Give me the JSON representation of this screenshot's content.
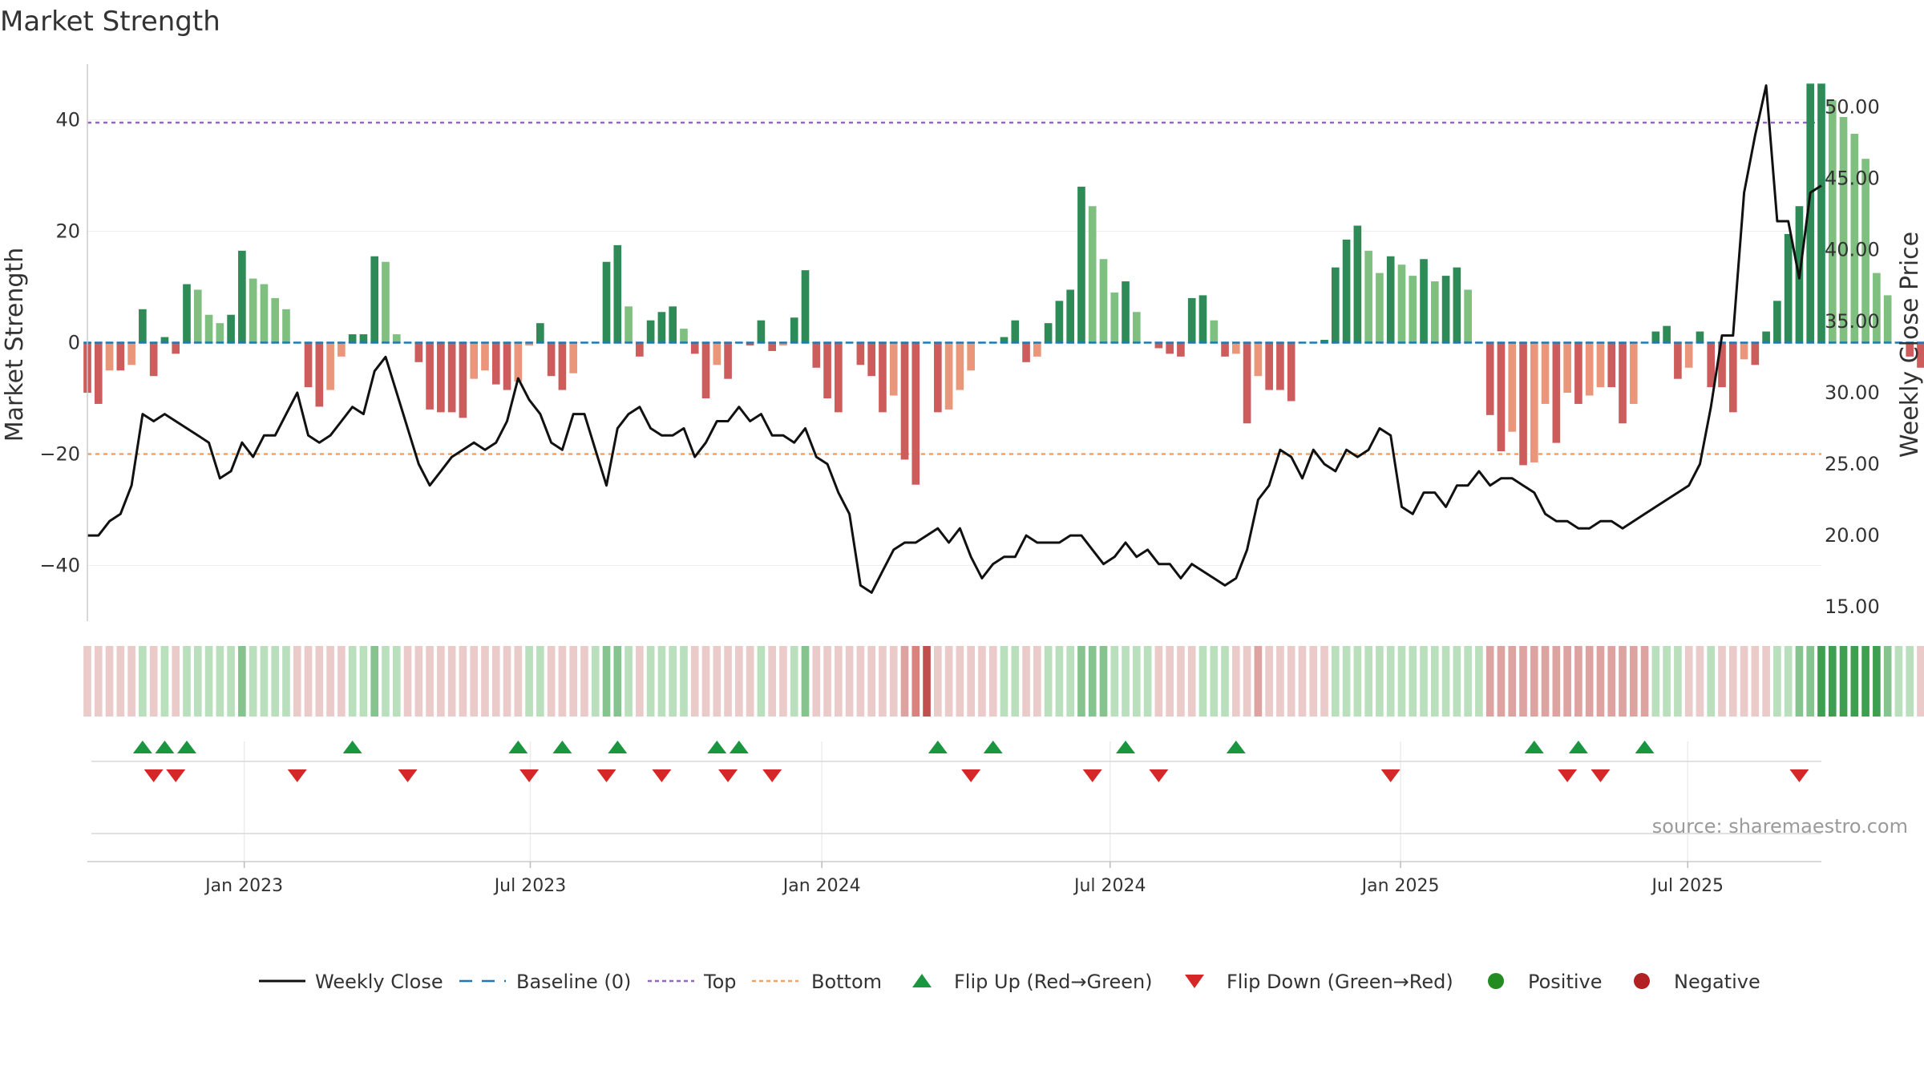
{
  "chart_data": {
    "type": "bar",
    "title": "Market Strength",
    "ylabel_left": "Market Strength",
    "ylabel_right": "Weekly Close Price",
    "source": "source: sharemaestro.com",
    "left_ylim": [
      -50,
      50
    ],
    "right_ylim": [
      14,
      53
    ],
    "left_ticks": [
      {
        "v": 40,
        "label": "40"
      },
      {
        "v": 20,
        "label": "20"
      },
      {
        "v": 0,
        "label": "0"
      },
      {
        "v": -20,
        "label": "−20"
      },
      {
        "v": -40,
        "label": "−40"
      }
    ],
    "right_ticks": [
      {
        "v": 50,
        "label": "50.00"
      },
      {
        "v": 45,
        "label": "45.00"
      },
      {
        "v": 40,
        "label": "40.00"
      },
      {
        "v": 35,
        "label": "35.00"
      },
      {
        "v": 30,
        "label": "30.00"
      },
      {
        "v": 25,
        "label": "25.00"
      },
      {
        "v": 20,
        "label": "20.00"
      },
      {
        "v": 15,
        "label": "15.00"
      }
    ],
    "top_line": 39.5,
    "bottom_line": -20,
    "baseline": 0,
    "x_start_week": 0,
    "x_end_week": 157,
    "date_ticks": [
      {
        "label": "Jan 2023",
        "week": 14.2
      },
      {
        "label": "Jul 2023",
        "week": 40.1
      },
      {
        "label": "Jan 2024",
        "week": 66.5
      },
      {
        "label": "Jul 2024",
        "week": 92.6
      },
      {
        "label": "Jan 2025",
        "week": 118.9
      },
      {
        "label": "Jul 2025",
        "week": 144.9
      }
    ],
    "strength": [
      -9,
      -11,
      -5,
      -5,
      -4,
      6,
      -6,
      1,
      -2,
      10.5,
      9.5,
      5,
      3.5,
      5,
      16.5,
      11.5,
      10.5,
      8,
      6,
      0,
      -8,
      -11.5,
      -8.5,
      -2.5,
      1.5,
      1.5,
      15.5,
      14.5,
      1.5,
      0,
      -3.5,
      -12,
      -12.5,
      -12.5,
      -13.5,
      -6.5,
      -5,
      -7.5,
      -8.5,
      -7,
      -0.5,
      3.5,
      -6,
      -8.5,
      -5.5,
      0,
      0,
      14.5,
      17.5,
      6.5,
      -2.5,
      4,
      5.5,
      6.5,
      2.5,
      -2,
      -10,
      -4,
      -6.5,
      0,
      -0.5,
      4,
      -1.5,
      -0.5,
      4.5,
      13,
      -4.5,
      -10,
      -12.5,
      0,
      -4,
      -6,
      -12.5,
      -9.5,
      -21,
      -25.5,
      0,
      -12.5,
      -12,
      -8.5,
      -5,
      0,
      0,
      1,
      4,
      -3.5,
      -2.5,
      3.5,
      7.5,
      9.5,
      28,
      24.5,
      15,
      9,
      11,
      5.5,
      0,
      -1,
      -2,
      -2.5,
      8,
      8.5,
      4,
      -2.5,
      -2,
      -14.5,
      -6,
      -8.5,
      -8.5,
      -10.5,
      0,
      0,
      0.5,
      13.5,
      18.5,
      21,
      16.5,
      12.5,
      15.5,
      14,
      12,
      15,
      11,
      12,
      13.5,
      9.5,
      0,
      -13,
      -19.5,
      -16,
      -22,
      -21.5,
      -11,
      -18,
      -9,
      -11,
      -9.5,
      -8,
      -8,
      -14.5,
      -11,
      0,
      2,
      3,
      -6.5,
      -4.5,
      2,
      -8,
      -8,
      -12.5,
      -3,
      -4,
      2,
      7.5,
      19.5,
      24.5,
      46.5,
      46.5,
      43.5,
      40.5,
      37.5,
      33,
      12.5,
      8.5,
      0,
      -2.5,
      -4.5
    ],
    "close": [
      20.0,
      20.0,
      21.0,
      21.5,
      23.5,
      28.5,
      28.0,
      28.5,
      28.0,
      27.5,
      27.0,
      26.5,
      24.0,
      24.5,
      26.5,
      25.5,
      27.0,
      27.0,
      28.5,
      30.0,
      27.0,
      26.5,
      27.0,
      28.0,
      29.0,
      28.5,
      31.5,
      32.5,
      30.0,
      27.5,
      25.0,
      23.5,
      24.5,
      25.5,
      26.0,
      26.5,
      26.0,
      26.5,
      28.0,
      31.0,
      29.5,
      28.5,
      26.5,
      26.0,
      28.5,
      28.5,
      26.0,
      23.5,
      27.5,
      28.5,
      29.0,
      27.5,
      27.0,
      27.0,
      27.5,
      25.5,
      26.5,
      28.0,
      28.0,
      29.0,
      28.0,
      28.5,
      27.0,
      27.0,
      26.5,
      27.5,
      25.5,
      25.0,
      23.0,
      21.5,
      16.5,
      16.0,
      17.5,
      19.0,
      19.5,
      19.5,
      20.0,
      20.5,
      19.5,
      20.5,
      18.5,
      17.0,
      18.0,
      18.5,
      18.5,
      20.0,
      19.5,
      19.5,
      19.5,
      20.0,
      20.0,
      19.0,
      18.0,
      18.5,
      19.5,
      18.5,
      19.0,
      18.0,
      18.0,
      17.0,
      18.0,
      17.5,
      17.0,
      16.5,
      17.0,
      19.0,
      22.5,
      23.5,
      26.0,
      25.5,
      24.0,
      26.0,
      25.0,
      24.5,
      26.0,
      25.5,
      26.0,
      27.5,
      27.0,
      22.0,
      21.5,
      23.0,
      23.0,
      22.0,
      23.5,
      23.5,
      24.5,
      23.5,
      24.0,
      24.0,
      23.5,
      23.0,
      21.5,
      21.0,
      21.0,
      20.5,
      20.5,
      21.0,
      21.0,
      20.5,
      21.0,
      21.5,
      22.0,
      22.5,
      23.0,
      23.5,
      25.0,
      29.0,
      34.0,
      34.0,
      44.0,
      48.0,
      51.5,
      42.0,
      42.0,
      38.0,
      44.0,
      44.5
    ],
    "status_strip": [
      0,
      0,
      0,
      0,
      0,
      1,
      0,
      1,
      0,
      1,
      1,
      1,
      1,
      1,
      2,
      1,
      1,
      1,
      1,
      0,
      0,
      0,
      0,
      0,
      1,
      1,
      2,
      1,
      1,
      0,
      0,
      0,
      0,
      0,
      0,
      0,
      0,
      0,
      0,
      0,
      1,
      1,
      0,
      0,
      0,
      0,
      1,
      2,
      2,
      1,
      0,
      1,
      1,
      1,
      1,
      0,
      0,
      0,
      0,
      0,
      0,
      1,
      0,
      0,
      1,
      2,
      0,
      0,
      0,
      0,
      0,
      0,
      0,
      0,
      -1,
      -2,
      -3,
      0,
      0,
      0,
      0,
      0,
      0,
      1,
      1,
      0,
      0,
      1,
      1,
      1,
      2,
      2,
      2,
      1,
      1,
      1,
      1,
      0,
      0,
      0,
      0,
      1,
      1,
      1,
      0,
      0,
      -1,
      0,
      0,
      0,
      0,
      0,
      0,
      1,
      1,
      1,
      1,
      1,
      1,
      1,
      1,
      1,
      1,
      1,
      1,
      1,
      1,
      -1,
      -1,
      -1,
      -1,
      -1,
      -1,
      -1,
      -1,
      -1,
      -1,
      -1,
      -1,
      -1,
      -1,
      -1,
      1,
      1,
      1,
      0,
      0,
      1,
      0,
      0,
      0,
      0,
      0,
      1,
      1,
      2,
      2,
      3,
      3,
      3,
      3,
      3,
      3,
      2,
      1,
      1,
      0,
      0
    ],
    "flip_up_weeks": [
      5,
      7,
      9,
      24,
      39,
      43,
      48,
      57,
      59,
      77,
      82,
      94,
      104,
      131,
      135,
      141
    ],
    "flip_down_weeks": [
      6,
      8,
      19,
      29,
      40,
      47,
      52,
      58,
      62,
      80,
      91,
      97,
      118,
      134,
      137,
      155
    ],
    "colors": {
      "strong_green": "#2e8b57",
      "light_green": "#7fbf7f",
      "strong_red": "#cd5c5c",
      "light_red": "#e9967a",
      "close_line": "#111111",
      "baseline": "#1f77b4",
      "top": "#9467bd",
      "bottom": "#f4a261",
      "flip_up": "#1a9641",
      "flip_down": "#d62728",
      "positive": "#228b22",
      "negative": "#b22222",
      "grid": "#e6e6e6",
      "axis": "#cccccc"
    },
    "legend": [
      {
        "label": "Weekly Close",
        "kind": "solid-line"
      },
      {
        "label": "Baseline (0)",
        "kind": "dashed-line"
      },
      {
        "label": "Top",
        "kind": "dotted-purple"
      },
      {
        "label": "Bottom",
        "kind": "dotted-orange"
      },
      {
        "label": "Flip Up (Red→Green)",
        "kind": "tri-up"
      },
      {
        "label": "Flip Down (Green→Red)",
        "kind": "tri-down"
      },
      {
        "label": "Positive",
        "kind": "dot-green"
      },
      {
        "label": "Negative",
        "kind": "dot-red"
      }
    ]
  }
}
